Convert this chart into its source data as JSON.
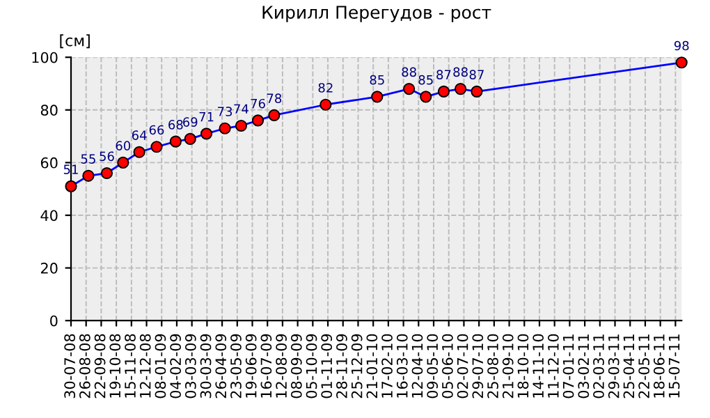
{
  "chart_data": {
    "type": "line",
    "title": "Кирилл Перегудов - рост",
    "ylabel": "[см]",
    "x": [
      "2008-07-30",
      "2008-08-30",
      "2008-10-02",
      "2008-10-31",
      "2008-11-29",
      "2008-12-30",
      "2009-02-02",
      "2009-02-28",
      "2009-03-29",
      "2009-05-01",
      "2009-05-30",
      "2009-06-29",
      "2009-07-28",
      "2009-10-28",
      "2010-01-28",
      "2010-03-26",
      "2010-04-25",
      "2010-05-27",
      "2010-06-26",
      "2010-07-25",
      "2011-07-26"
    ],
    "series": [
      {
        "color": "#0000ff",
        "colors": [
          "#ff0000",
          "#ff0000",
          "#ff0000",
          "#ff0000",
          "#ff0000",
          "#ff0000",
          "#ff0000",
          "#ff0000",
          "#ff0000",
          "#ff0000",
          "#ff0000",
          "#ff0000",
          "#ff0000",
          "#ff0000",
          "#ff0000",
          "#ff0000",
          "#ff0000",
          "#ff0000",
          "#ff0000",
          "#ff0000",
          "#ff0000"
        ],
        "values": [
          51,
          55,
          56,
          60,
          64,
          66,
          68,
          69,
          71,
          73,
          74,
          76,
          78,
          82,
          85,
          88,
          85,
          87,
          88,
          87,
          98
        ]
      }
    ],
    "data_labels": true,
    "marker": "circle",
    "line_style": "solid",
    "grid": true,
    "ylim": [
      0,
      100
    ],
    "yticks": [
      0,
      20,
      40,
      60,
      80,
      100
    ],
    "xlim": [
      "2008-07-30",
      "2011-07-26"
    ],
    "xticks": [
      {
        "value": "2008-07-30",
        "label": "30-07-08"
      },
      {
        "value": "2008-08-26",
        "label": "26-08-08"
      },
      {
        "value": "2008-09-22",
        "label": "22-09-08"
      },
      {
        "value": "2008-10-19",
        "label": "19-10-08"
      },
      {
        "value": "2008-11-15",
        "label": "15-11-08"
      },
      {
        "value": "2008-12-12",
        "label": "12-12-08"
      },
      {
        "value": "2009-01-08",
        "label": "08-01-09"
      },
      {
        "value": "2009-02-04",
        "label": "04-02-09"
      },
      {
        "value": "2009-03-03",
        "label": "03-03-09"
      },
      {
        "value": "2009-03-30",
        "label": "30-03-09"
      },
      {
        "value": "2009-04-26",
        "label": "26-04-09"
      },
      {
        "value": "2009-05-23",
        "label": "23-05-09"
      },
      {
        "value": "2009-06-19",
        "label": "19-06-09"
      },
      {
        "value": "2009-07-16",
        "label": "16-07-09"
      },
      {
        "value": "2009-08-12",
        "label": "12-08-09"
      },
      {
        "value": "2009-09-08",
        "label": "08-09-09"
      },
      {
        "value": "2009-10-05",
        "label": "05-10-09"
      },
      {
        "value": "2009-11-01",
        "label": "01-11-09"
      },
      {
        "value": "2009-11-28",
        "label": "28-11-09"
      },
      {
        "value": "2009-12-25",
        "label": "25-12-09"
      },
      {
        "value": "2010-01-21",
        "label": "21-01-10"
      },
      {
        "value": "2010-02-17",
        "label": "17-02-10"
      },
      {
        "value": "2010-03-16",
        "label": "16-03-10"
      },
      {
        "value": "2010-04-12",
        "label": "12-04-10"
      },
      {
        "value": "2010-05-09",
        "label": "09-05-10"
      },
      {
        "value": "2010-06-05",
        "label": "05-06-10"
      },
      {
        "value": "2010-07-02",
        "label": "02-07-10"
      },
      {
        "value": "2010-07-29",
        "label": "29-07-10"
      },
      {
        "value": "2010-08-25",
        "label": "25-08-10"
      },
      {
        "value": "2010-09-21",
        "label": "21-09-10"
      },
      {
        "value": "2010-10-18",
        "label": "18-10-10"
      },
      {
        "value": "2010-11-14",
        "label": "14-11-10"
      },
      {
        "value": "2010-12-11",
        "label": "11-12-10"
      },
      {
        "value": "2011-01-07",
        "label": "07-01-11"
      },
      {
        "value": "2011-02-03",
        "label": "03-02-11"
      },
      {
        "value": "2011-03-02",
        "label": "02-03-11"
      },
      {
        "value": "2011-03-29",
        "label": "29-03-11"
      },
      {
        "value": "2011-04-25",
        "label": "25-04-11"
      },
      {
        "value": "2011-05-22",
        "label": "22-05-11"
      },
      {
        "value": "2011-06-18",
        "label": "18-06-11"
      },
      {
        "value": "2011-07-15",
        "label": "15-07-11"
      }
    ]
  }
}
